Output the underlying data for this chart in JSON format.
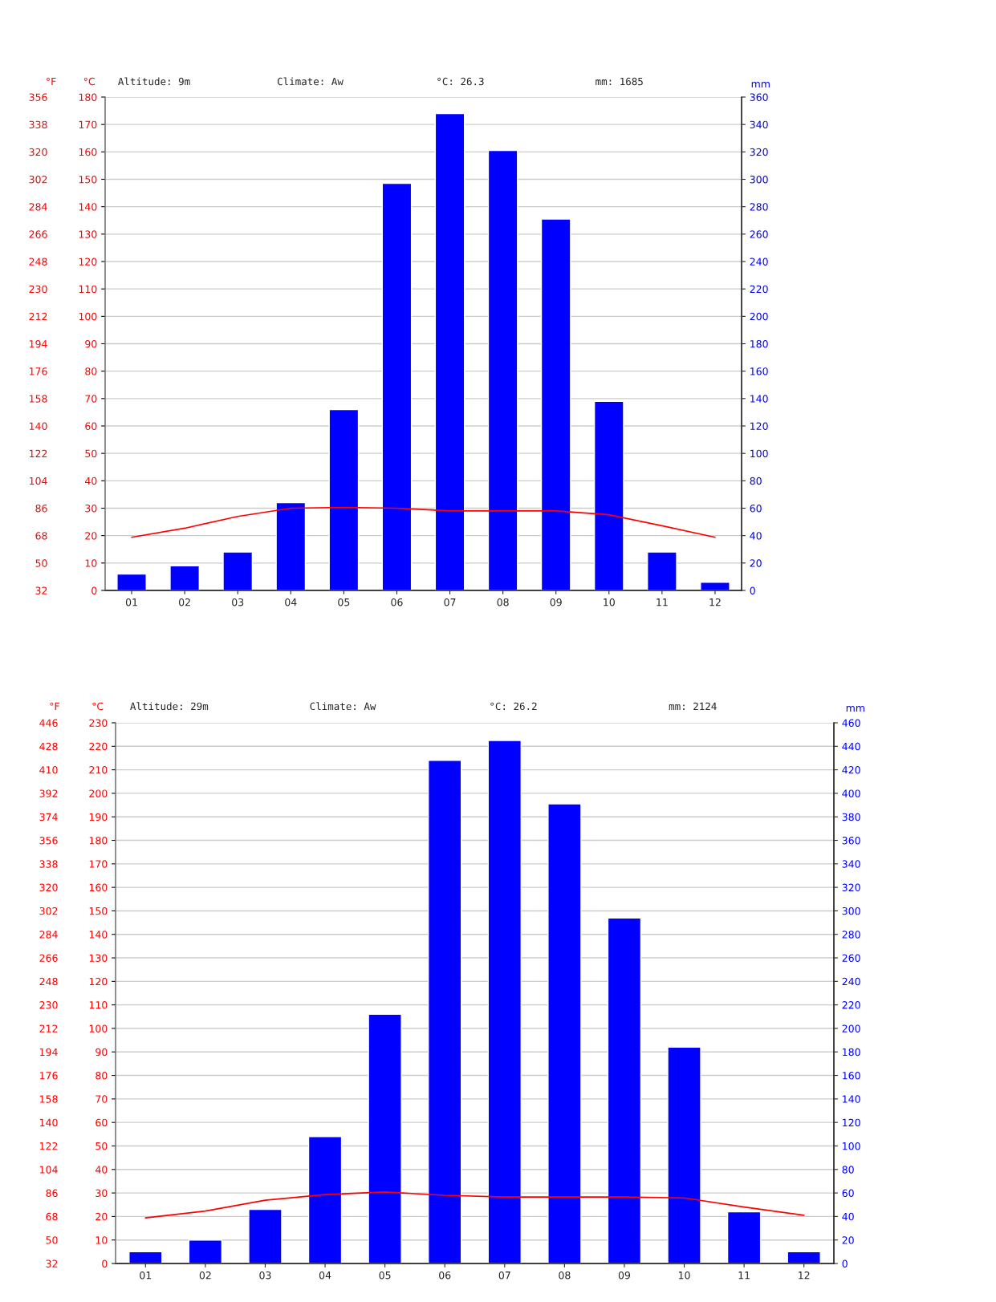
{
  "chart_data": [
    {
      "type": "bar",
      "annotations": [
        "Altitude: 9m",
        "Climate: Aw",
        "°C: 26.3",
        "mm: 1685"
      ],
      "categories": [
        "01",
        "02",
        "03",
        "04",
        "05",
        "06",
        "07",
        "08",
        "09",
        "10",
        "11",
        "12"
      ],
      "ylabel": "°C",
      "y2label": "mm",
      "y3label": "°F",
      "ylim": [
        0,
        180
      ],
      "yticks": [
        0,
        10,
        20,
        30,
        40,
        50,
        60,
        70,
        80,
        90,
        100,
        110,
        120,
        130,
        140,
        150,
        160,
        170,
        180
      ],
      "y2lim": [
        0,
        360
      ],
      "y2ticks": [
        0,
        20,
        40,
        60,
        80,
        100,
        120,
        140,
        160,
        180,
        200,
        220,
        240,
        260,
        280,
        300,
        320,
        340,
        360
      ],
      "y3lim": [
        32,
        356
      ],
      "y3ticks": [
        32,
        50,
        68,
        86,
        104,
        122,
        140,
        158,
        176,
        194,
        212,
        230,
        248,
        266,
        284,
        302,
        320,
        338,
        356
      ],
      "grid": "y",
      "series": [
        {
          "axis": "y2",
          "color": "#0000ff",
          "values": [
            12,
            18,
            28,
            64,
            132,
            297,
            348,
            321,
            271,
            138,
            28,
            6
          ]
        },
        {
          "type": "line",
          "axis": "y",
          "color": "#ff0000",
          "values": [
            19.4,
            22.7,
            27,
            30,
            30.3,
            30,
            29,
            29,
            29,
            27.6,
            23.6,
            19.4
          ]
        }
      ]
    },
    {
      "type": "bar",
      "annotations": [
        "Altitude: 29m",
        "Climate: Aw",
        "°C: 26.2",
        "mm: 2124"
      ],
      "categories": [
        "01",
        "02",
        "03",
        "04",
        "05",
        "06",
        "07",
        "08",
        "09",
        "10",
        "11",
        "12"
      ],
      "ylabel": "°C",
      "y2label": "mm",
      "y3label": "°F",
      "ylim": [
        0,
        230
      ],
      "yticks": [
        0,
        10,
        20,
        30,
        40,
        50,
        60,
        70,
        80,
        90,
        100,
        110,
        120,
        130,
        140,
        150,
        160,
        170,
        180,
        190,
        200,
        210,
        220,
        230
      ],
      "y2lim": [
        0,
        460
      ],
      "y2ticks": [
        0,
        20,
        40,
        60,
        80,
        100,
        120,
        140,
        160,
        180,
        200,
        220,
        240,
        260,
        280,
        300,
        320,
        340,
        360,
        380,
        400,
        420,
        440,
        460
      ],
      "y3lim": [
        32,
        446
      ],
      "y3ticks": [
        32,
        50,
        68,
        86,
        104,
        122,
        140,
        158,
        176,
        194,
        212,
        230,
        248,
        266,
        284,
        302,
        320,
        338,
        356,
        374,
        392,
        410,
        428,
        446
      ],
      "grid": "y",
      "series": [
        {
          "axis": "y2",
          "color": "#0000ff",
          "values": [
            10,
            20,
            46,
            108,
            212,
            428,
            445,
            391,
            294,
            184,
            44,
            10
          ]
        },
        {
          "type": "line",
          "axis": "y",
          "color": "#ff0000",
          "values": [
            19.4,
            22.3,
            26.9,
            29.3,
            30.4,
            29,
            28.3,
            28.3,
            28.3,
            27.9,
            24,
            20.5
          ]
        }
      ]
    }
  ]
}
